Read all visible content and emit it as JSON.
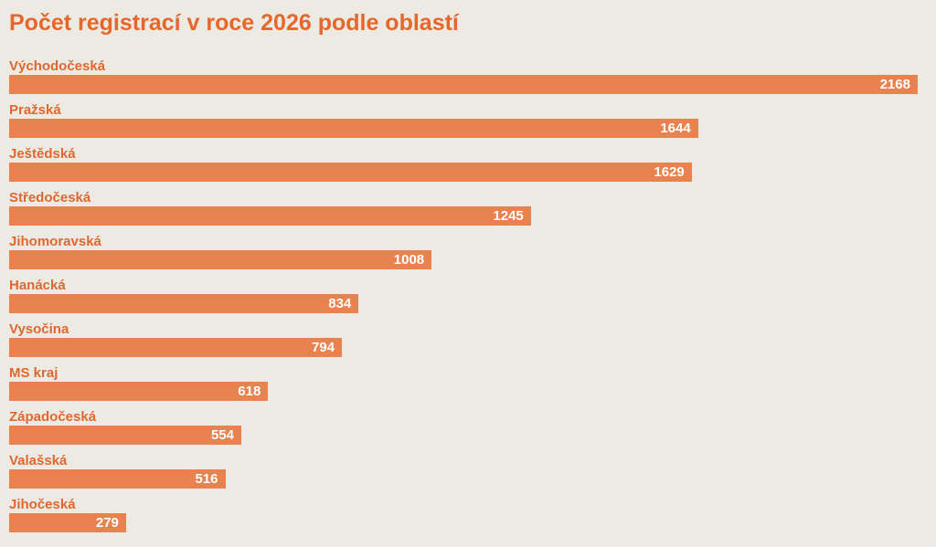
{
  "page": {
    "background_color": "#ECEAE2"
  },
  "chart_data": {
    "type": "bar",
    "orientation": "horizontal",
    "title": "Počet registrací v roce 2026 podle oblastí",
    "categories": [
      "Východočeská",
      "Pražská",
      "Ještědská",
      "Středočeská",
      "Jihomoravská",
      "Hanácká",
      "Vysočina",
      "MS kraj",
      "Západočeská",
      "Valašská",
      "Jihočeská"
    ],
    "values": [
      2168,
      1644,
      1629,
      1245,
      1008,
      834,
      794,
      618,
      554,
      516,
      279
    ],
    "xlabel": "",
    "ylabel": "",
    "xlim": [
      0,
      2190
    ],
    "grid": false,
    "legend": false,
    "sort": "descending",
    "bar_color": "#E8824E",
    "category_label_color": "#E0672F",
    "value_label_color": "#FFFFFF",
    "title_color": "#E5672C",
    "value_label_position": "inside-end"
  }
}
